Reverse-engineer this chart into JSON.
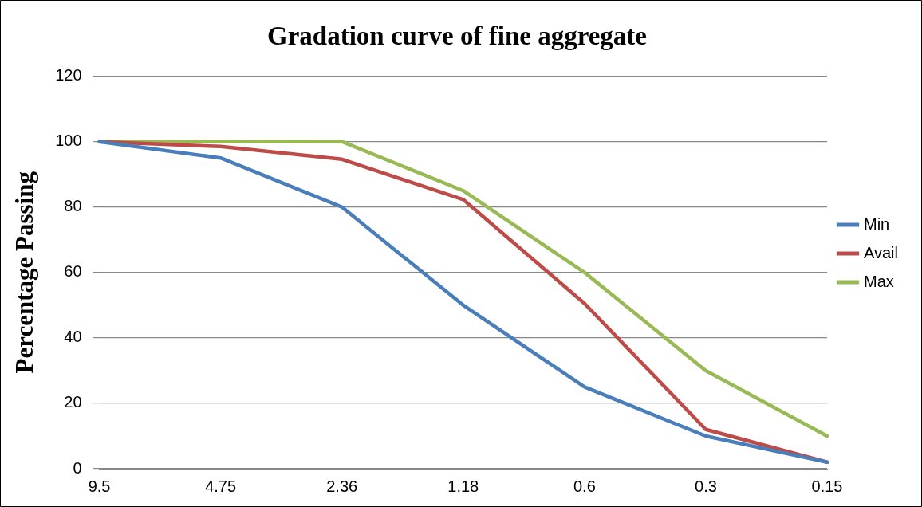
{
  "chart_data": {
    "type": "line",
    "title": "Gradation curve of fine aggregate",
    "ylabel": "Percentage Passing",
    "categories": [
      "9.5",
      "4.75",
      "2.36",
      "1.18",
      "0.6",
      "0.3",
      "0.15"
    ],
    "series": [
      {
        "name": "Min",
        "color": "#4a7ebb",
        "values": [
          100,
          95,
          80,
          50,
          25,
          10,
          2
        ]
      },
      {
        "name": "Avail",
        "color": "#be4b48",
        "values": [
          100,
          98.5,
          94.6,
          82.3,
          50.5,
          12,
          2
        ]
      },
      {
        "name": "Max",
        "color": "#98b954",
        "values": [
          100,
          100,
          100,
          85,
          60,
          30,
          10
        ]
      }
    ],
    "ylim": [
      0,
      120
    ],
    "yticks": [
      0,
      20,
      40,
      60,
      80,
      100,
      120
    ],
    "grid": "y",
    "legend": "right",
    "marker": "none",
    "line_style": "solid"
  }
}
